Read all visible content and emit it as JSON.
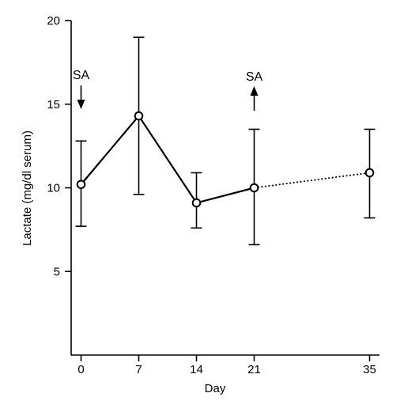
{
  "colors": {
    "line": "#000000",
    "marker_fill": "#ffffff",
    "background": "#ffffff"
  },
  "chart_data": {
    "type": "line",
    "title": "",
    "xlabel": "Day",
    "ylabel": "Lactate (mg/dl serum)",
    "x_ticks": [
      0,
      7,
      14,
      21,
      35
    ],
    "y_ticks": [
      5,
      10,
      15,
      20
    ],
    "xlim": [
      -1.2,
      36.2
    ],
    "ylim": [
      0,
      20
    ],
    "grid": false,
    "series": [
      {
        "x": [
          0,
          7,
          14,
          21,
          35
        ],
        "y": [
          10.2,
          14.3,
          9.1,
          10.0,
          10.9
        ],
        "error_low": [
          7.7,
          9.6,
          7.6,
          6.6,
          8.2
        ],
        "error_high": [
          12.8,
          19.0,
          10.9,
          13.5,
          13.5
        ],
        "segment_styles": [
          "solid",
          "solid",
          "solid",
          "dotted"
        ]
      }
    ],
    "annotations": [
      {
        "text": "SA",
        "x": 0,
        "arrow": "down"
      },
      {
        "text": "SA",
        "x": 21,
        "arrow": "up"
      }
    ]
  }
}
